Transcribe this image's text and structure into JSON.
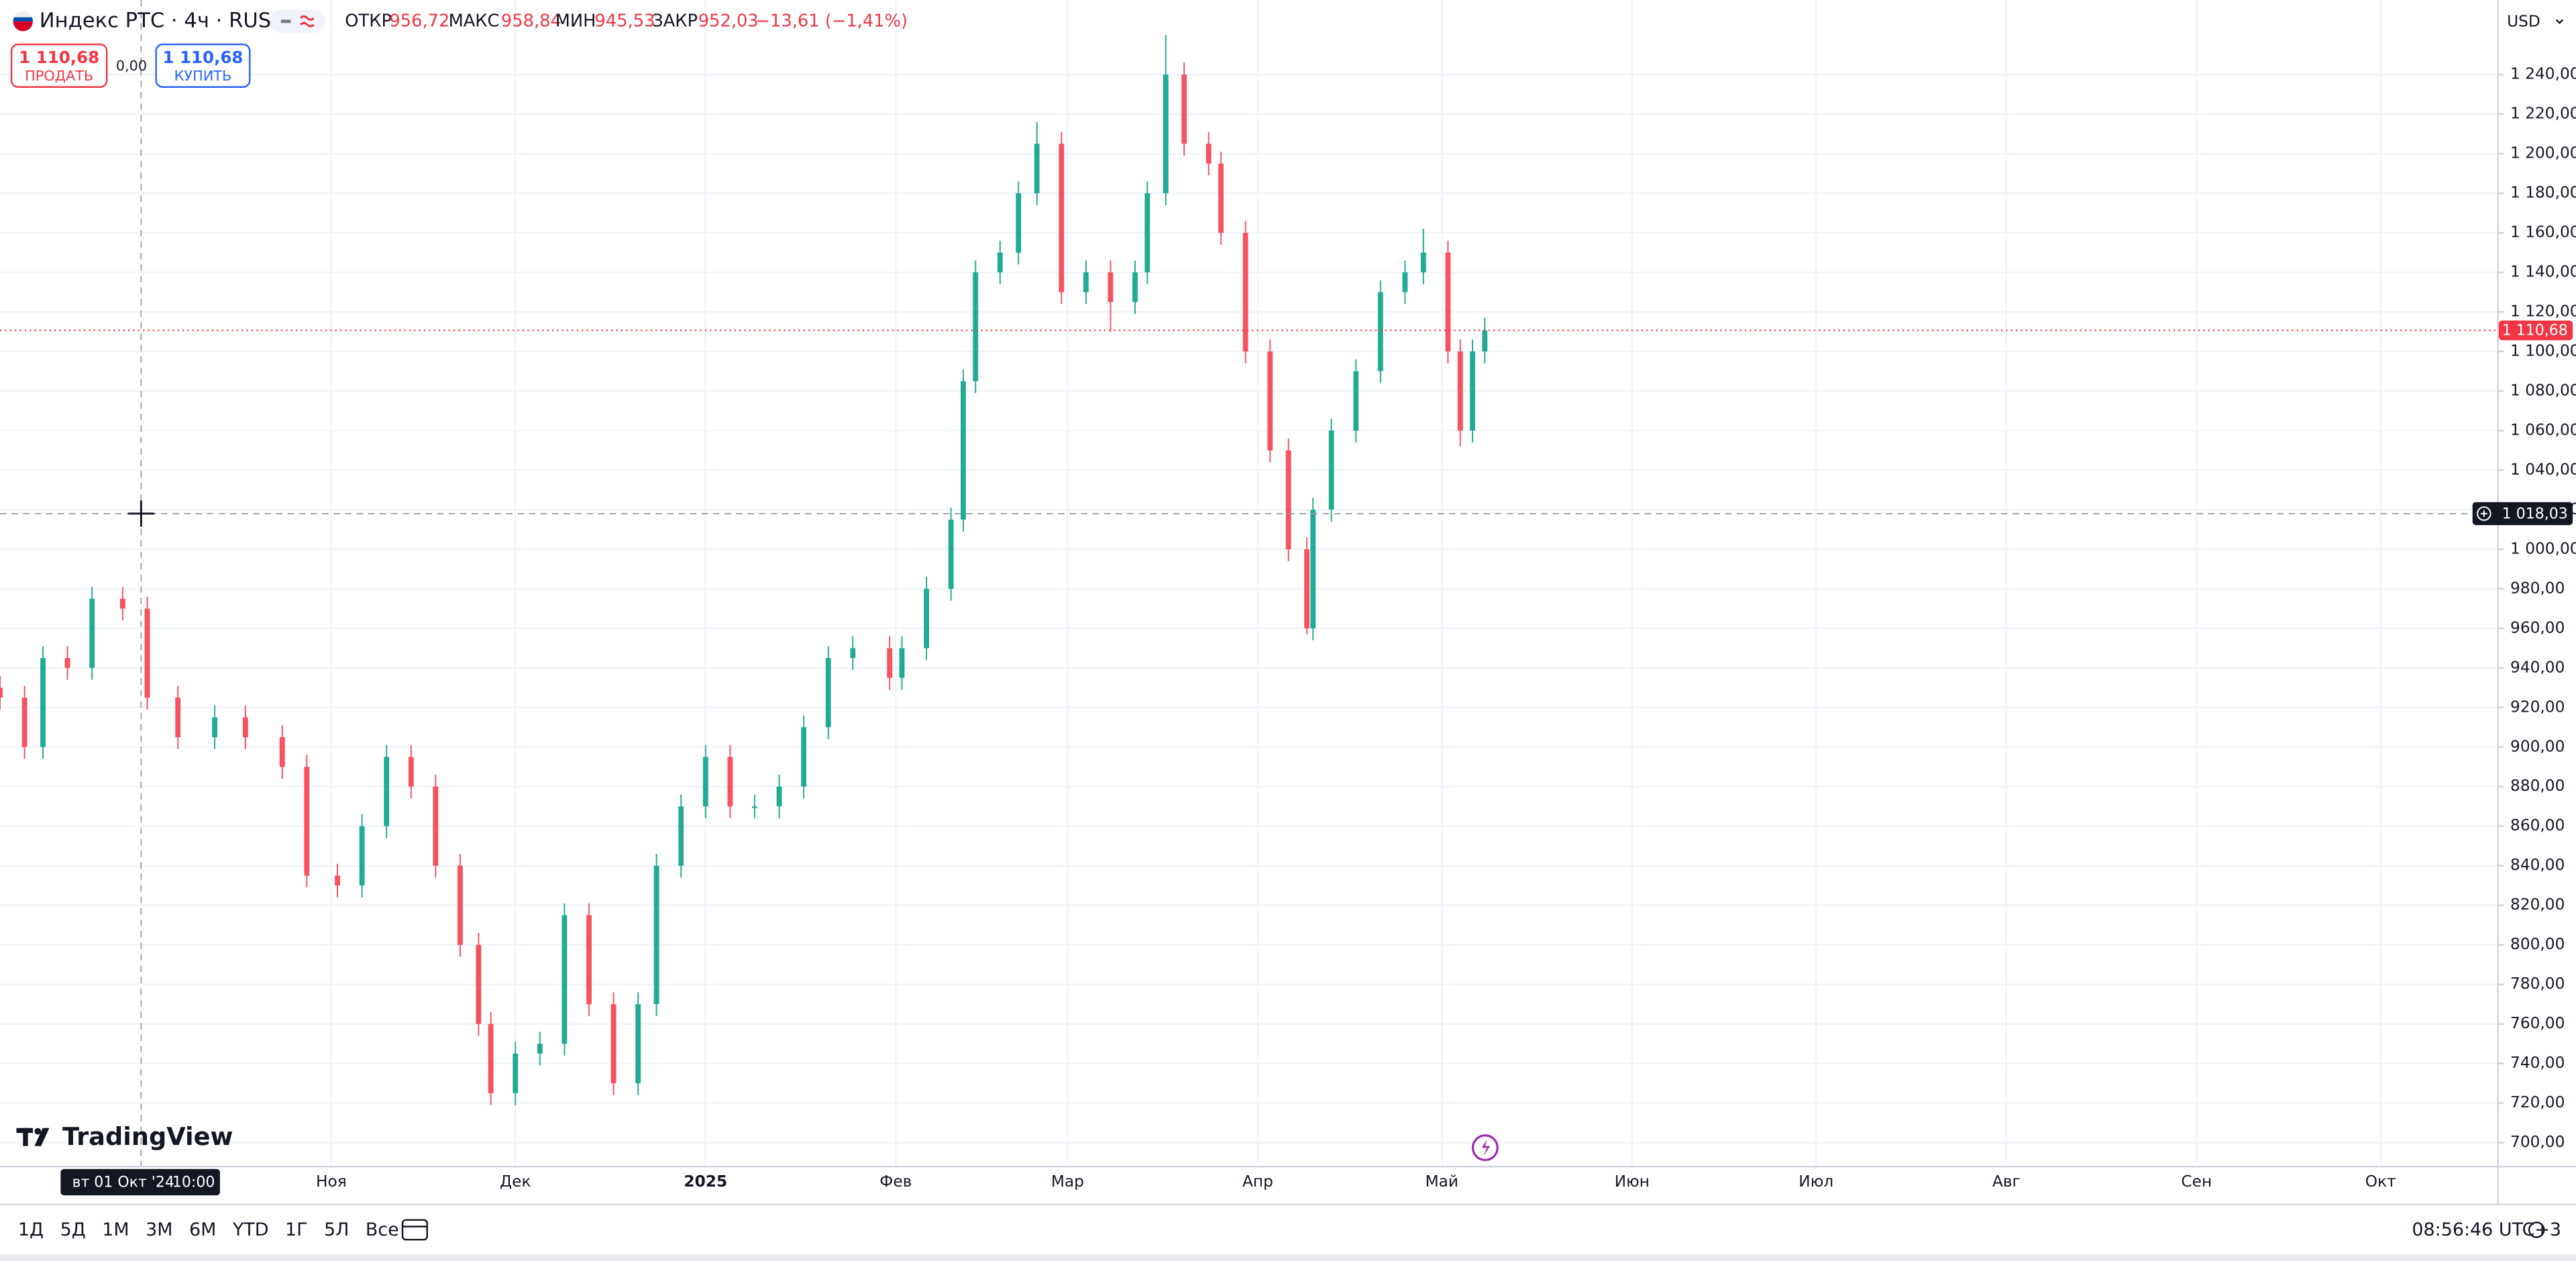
{
  "header": {
    "symbol": "Индекс РТС · 4ч · RUS",
    "ohlc": [
      {
        "label": "ОТКР",
        "value": "956,72"
      },
      {
        "label": "МАКС",
        "value": "958,84"
      },
      {
        "label": "МИН",
        "value": "945,53"
      },
      {
        "label": "ЗАКР",
        "value": "952,03"
      }
    ],
    "change": "−13,61 (−1,41%)"
  },
  "trade": {
    "sell": {
      "price": "1 110,68",
      "label": "ПРОДАТЬ"
    },
    "spread": "0,00",
    "buy": {
      "price": "1 110,68",
      "label": "КУПИТЬ"
    }
  },
  "currency": "USD",
  "logo": "TradingView",
  "toolbar": {
    "ranges": [
      "1Д",
      "5Д",
      "1М",
      "3М",
      "6М",
      "YTD",
      "1Г",
      "5Л",
      "Все"
    ],
    "clock": "08:56:46 UTC+3"
  },
  "chart_data": {
    "type": "candlestick",
    "up_color": "#22ab94",
    "down_color": "#f7525f",
    "grid": true,
    "x": [
      "2024-09-08",
      "2024-09-12",
      "2024-09-15",
      "2024-09-19",
      "2024-09-23",
      "2024-09-28",
      "2024-10-02",
      "2024-10-07",
      "2024-10-13",
      "2024-10-18",
      "2024-10-24",
      "2024-10-28",
      "2024-11-02",
      "2024-11-06",
      "2024-11-10",
      "2024-11-14",
      "2024-11-18",
      "2024-11-22",
      "2024-11-25",
      "2024-11-27",
      "2024-12-01",
      "2024-12-05",
      "2024-12-09",
      "2024-12-13",
      "2024-12-17",
      "2024-12-21",
      "2024-12-24",
      "2024-12-28",
      "2025-01-01",
      "2025-01-05",
      "2025-01-09",
      "2025-01-13",
      "2025-01-17",
      "2025-01-21",
      "2025-01-25",
      "2025-01-31",
      "2025-02-02",
      "2025-02-06",
      "2025-02-10",
      "2025-02-12",
      "2025-02-14",
      "2025-02-18",
      "2025-02-21",
      "2025-02-24",
      "2025-02-28",
      "2025-03-04",
      "2025-03-08",
      "2025-03-12",
      "2025-03-14",
      "2025-03-17",
      "2025-03-20",
      "2025-03-24",
      "2025-03-26",
      "2025-03-30",
      "2025-04-03",
      "2025-04-06",
      "2025-04-09",
      "2025-04-10",
      "2025-04-13",
      "2025-04-17",
      "2025-04-21",
      "2025-04-25",
      "2025-04-28",
      "2025-05-02",
      "2025-05-04",
      "2025-05-06",
      "2025-05-08"
    ],
    "open": [
      930,
      925,
      900,
      945,
      940,
      975,
      970,
      925,
      905,
      915,
      905,
      890,
      835,
      830,
      860,
      895,
      880,
      840,
      800,
      760,
      725,
      745,
      750,
      815,
      770,
      730,
      770,
      840,
      870,
      895,
      870,
      870,
      880,
      910,
      945,
      950,
      935,
      950,
      980,
      1015,
      1085,
      1140,
      1150,
      1180,
      1205,
      1130,
      1140,
      1125,
      1140,
      1180,
      1240,
      1205,
      1195,
      1160,
      1100,
      1050,
      1000,
      960,
      1020,
      1060,
      1090,
      1130,
      1140,
      1150,
      1100,
      1060,
      1100
    ],
    "high": [
      936,
      931,
      951,
      951,
      981,
      981,
      976,
      931,
      921,
      921,
      911,
      896,
      841,
      866,
      901,
      901,
      886,
      846,
      806,
      766,
      751,
      756,
      821,
      821,
      776,
      776,
      846,
      876,
      901,
      901,
      876,
      886,
      916,
      951,
      956,
      956,
      956,
      986,
      1021,
      1091,
      1146,
      1156,
      1186,
      1216,
      1211,
      1146,
      1146,
      1146,
      1186,
      1260,
      1246,
      1211,
      1201,
      1166,
      1106,
      1056,
      1006,
      1026,
      1066,
      1096,
      1136,
      1146,
      1162,
      1156,
      1106,
      1106,
      1117
    ],
    "low": [
      919,
      894,
      894,
      934,
      934,
      964,
      919,
      899,
      899,
      899,
      884,
      829,
      824,
      824,
      854,
      874,
      834,
      794,
      754,
      719,
      719,
      739,
      744,
      764,
      724,
      724,
      764,
      834,
      864,
      864,
      864,
      864,
      874,
      904,
      939,
      929,
      929,
      944,
      974,
      1009,
      1079,
      1134,
      1144,
      1174,
      1124,
      1124,
      1110,
      1119,
      1134,
      1174,
      1199,
      1189,
      1154,
      1094,
      1044,
      994,
      957,
      954,
      1014,
      1054,
      1084,
      1124,
      1134,
      1094,
      1052,
      1054,
      1094
    ],
    "close": [
      925,
      900,
      945,
      940,
      975,
      970,
      925,
      905,
      915,
      905,
      890,
      835,
      830,
      860,
      895,
      880,
      840,
      800,
      760,
      725,
      745,
      750,
      815,
      770,
      730,
      770,
      840,
      870,
      895,
      870,
      870,
      880,
      910,
      945,
      950,
      935,
      950,
      980,
      1015,
      1085,
      1140,
      1150,
      1180,
      1205,
      1130,
      1140,
      1125,
      1140,
      1180,
      1240,
      1205,
      1195,
      1160,
      1100,
      1050,
      1000,
      960,
      1020,
      1060,
      1090,
      1130,
      1140,
      1150,
      1100,
      1060,
      1100,
      1110.68
    ],
    "xlim": [
      "2024-09-08",
      "2025-10-20"
    ],
    "xticks": [
      {
        "value": "2024-11-01",
        "label": "Ноя"
      },
      {
        "value": "2024-12-01",
        "label": "Дек"
      },
      {
        "value": "2025-01-01",
        "label": "2025"
      },
      {
        "value": "2025-02-01",
        "label": "Фев"
      },
      {
        "value": "2025-03-01",
        "label": "Мар"
      },
      {
        "value": "2025-04-01",
        "label": "Апр"
      },
      {
        "value": "2025-05-01",
        "label": "Май"
      },
      {
        "value": "2025-06-01",
        "label": "Июн"
      },
      {
        "value": "2025-07-01",
        "label": "Июл"
      },
      {
        "value": "2025-08-01",
        "label": "Авг"
      },
      {
        "value": "2025-09-01",
        "label": "Сен"
      },
      {
        "value": "2025-10-01",
        "label": "Окт"
      }
    ],
    "ylim": [
      688.3,
      1277.7
    ],
    "yticks": [
      {
        "value": 700,
        "label": "700,00"
      },
      {
        "value": 720,
        "label": "720,00"
      },
      {
        "value": 740,
        "label": "740,00"
      },
      {
        "value": 760,
        "label": "760,00"
      },
      {
        "value": 780,
        "label": "780,00"
      },
      {
        "value": 800,
        "label": "800,00"
      },
      {
        "value": 820,
        "label": "820,00"
      },
      {
        "value": 840,
        "label": "840,00"
      },
      {
        "value": 860,
        "label": "860,00"
      },
      {
        "value": 880,
        "label": "880,00"
      },
      {
        "value": 900,
        "label": "900,00"
      },
      {
        "value": 920,
        "label": "920,00"
      },
      {
        "value": 940,
        "label": "940,00"
      },
      {
        "value": 960,
        "label": "960,00"
      },
      {
        "value": 980,
        "label": "980,00"
      },
      {
        "value": 1000,
        "label": "1 000,00"
      },
      {
        "value": 1020,
        "label": "1 020,00"
      },
      {
        "value": 1040,
        "label": "1 040,00"
      },
      {
        "value": 1060,
        "label": "1 060,00"
      },
      {
        "value": 1080,
        "label": "1 080,00"
      },
      {
        "value": 1100,
        "label": "1 100,00"
      },
      {
        "value": 1120,
        "label": "1 120,00"
      },
      {
        "value": 1140,
        "label": "1 140,00"
      },
      {
        "value": 1160,
        "label": "1 160,00"
      },
      {
        "value": 1180,
        "label": "1 180,00"
      },
      {
        "value": 1200,
        "label": "1 200,00"
      },
      {
        "value": 1220,
        "label": "1 220,00"
      },
      {
        "value": 1240,
        "label": "1 240,00"
      }
    ],
    "last_price": {
      "value": 1110.68,
      "label": "1 110,68",
      "color": "#f23645"
    },
    "crosshair": {
      "x": "2024-10-01",
      "x_label": "вт 01 Окт '24",
      "time_label": "10:00",
      "y": {
        "value": 1018.03,
        "label": "1 018,03"
      }
    }
  }
}
